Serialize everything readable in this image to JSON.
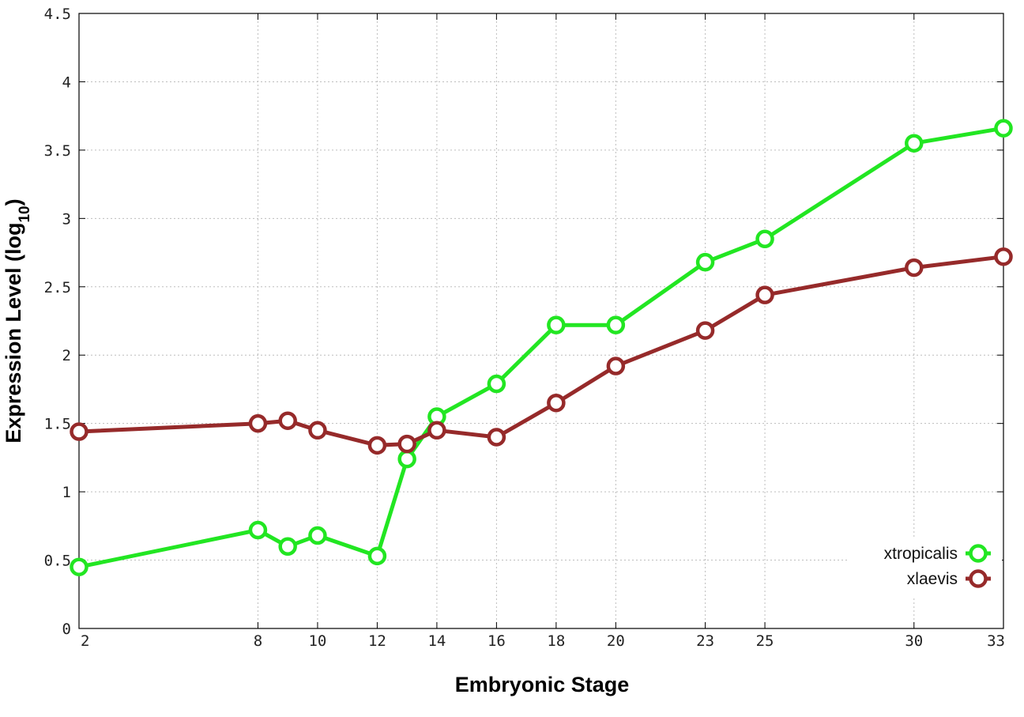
{
  "chart_data": {
    "type": "line",
    "xlabel": "Embryonic Stage",
    "ylabel": {
      "prefix": "Expression Level (log",
      "subscript": "10",
      "suffix": ")"
    },
    "xticks": [
      2,
      8,
      10,
      12,
      14,
      16,
      18,
      20,
      23,
      25,
      30,
      33
    ],
    "xlim": [
      2,
      33
    ],
    "yticks": [
      "0",
      "0.5",
      "1",
      "1.5",
      "2",
      "2.5",
      "3",
      "3.5",
      "4",
      "4.5"
    ],
    "ylim": [
      0,
      4.5
    ],
    "grid": true,
    "legend_position": "bottom-right",
    "x": [
      2,
      8,
      9,
      10,
      12,
      13,
      14,
      16,
      18,
      20,
      23,
      25,
      30,
      33
    ],
    "series": [
      {
        "name": "xtropicalis",
        "color": "#22e622",
        "values": [
          0.45,
          0.72,
          0.6,
          0.68,
          0.53,
          1.24,
          1.55,
          1.79,
          2.22,
          2.22,
          2.68,
          2.85,
          3.55,
          3.66
        ]
      },
      {
        "name": "xlaevis",
        "color": "#962a2a",
        "values": [
          1.44,
          1.5,
          1.52,
          1.45,
          1.34,
          1.35,
          1.45,
          1.4,
          1.65,
          1.92,
          2.18,
          2.44,
          2.64,
          2.72
        ]
      }
    ]
  }
}
